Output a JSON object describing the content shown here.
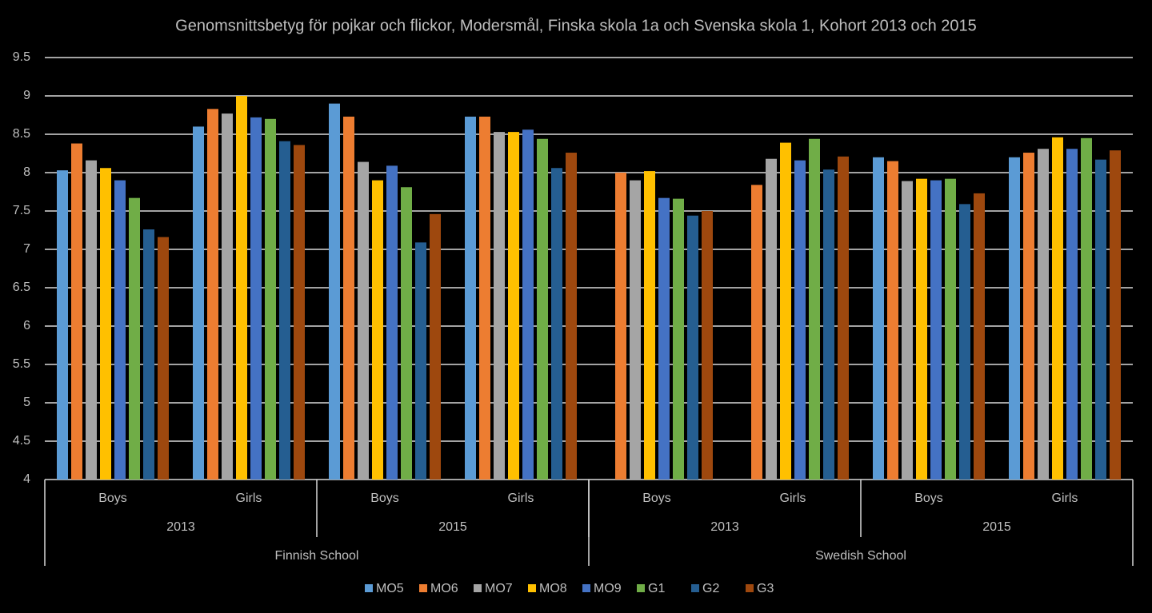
{
  "chart_data": {
    "type": "bar",
    "title": "Genomsnittsbetyg för pojkar och flickor,  Modersmål, Finska skola 1a och Svenska skola 1, Kohort 2013 och 2015",
    "categories": [
      "Boys",
      "Girls",
      "Boys",
      "Girls",
      "Boys",
      "Girls",
      "Boys",
      "Girls"
    ],
    "year_labels": [
      "2013",
      "2015",
      "2013",
      "2015"
    ],
    "school_labels": [
      "Finnish School",
      "Swedish School"
    ],
    "series": [
      {
        "name": "MO5",
        "color": "#5b9bd5",
        "values": [
          8.03,
          8.6,
          8.9,
          8.73,
          null,
          null,
          8.2,
          8.2
        ]
      },
      {
        "name": "MO6",
        "color": "#ed7d31",
        "values": [
          8.38,
          8.83,
          8.73,
          8.73,
          8.0,
          7.84,
          8.15,
          8.26
        ]
      },
      {
        "name": "MO7",
        "color": "#a5a5a5",
        "values": [
          8.16,
          8.77,
          8.14,
          8.53,
          7.9,
          8.18,
          7.89,
          8.31
        ]
      },
      {
        "name": "MO8",
        "color": "#ffc000",
        "values": [
          8.06,
          9.0,
          7.9,
          8.53,
          8.02,
          8.39,
          7.92,
          8.46
        ]
      },
      {
        "name": "MO9",
        "color": "#4472c4",
        "values": [
          7.9,
          8.72,
          8.09,
          8.56,
          7.67,
          8.16,
          7.9,
          8.31
        ]
      },
      {
        "name": "G1",
        "color": "#70ad47",
        "values": [
          7.67,
          8.7,
          7.81,
          8.44,
          7.66,
          8.44,
          7.92,
          8.45
        ]
      },
      {
        "name": "G2",
        "color": "#255e91",
        "values": [
          7.26,
          8.41,
          7.09,
          8.06,
          7.44,
          8.04,
          7.59,
          8.17
        ]
      },
      {
        "name": "G3",
        "color": "#9e480e",
        "values": [
          7.16,
          8.36,
          7.46,
          8.26,
          7.5,
          8.21,
          7.73,
          8.29
        ]
      }
    ],
    "ylim": [
      4,
      9.5
    ],
    "yticks": [
      4,
      4.5,
      5,
      5.5,
      6,
      6.5,
      7,
      7.5,
      8,
      8.5,
      9,
      9.5
    ],
    "grid": true,
    "legend": "bottom"
  }
}
